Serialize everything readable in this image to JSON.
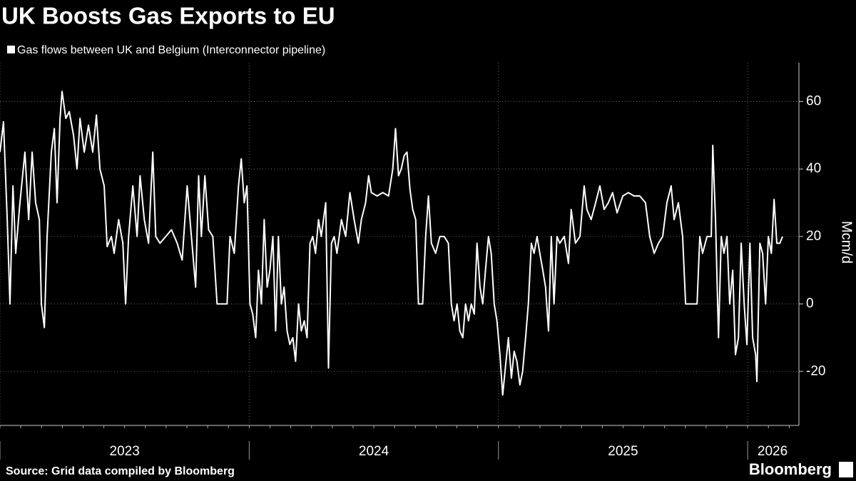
{
  "chart_data": {
    "type": "line",
    "title": "UK Boosts Gas Exports to EU",
    "source": "Source: Grid data compiled by Bloomberg",
    "brand": "Bloomberg",
    "ylabel": "Mcm/d",
    "xlim": [
      2023,
      2026.2
    ],
    "xticks": [
      2023,
      2024,
      2025,
      2026
    ],
    "ylim": [
      -36,
      71.5
    ],
    "yticks": [
      -20,
      0,
      20,
      40,
      60
    ],
    "grid": true,
    "series": [
      {
        "name": "Gas flows between UK and Belgium (Interconnector pipeline)",
        "color": "#ffffff",
        "x": [
          2023.0,
          2023.014,
          2023.029,
          2023.04,
          2023.052,
          2023.063,
          2023.08,
          2023.1,
          2023.115,
          2023.129,
          2023.143,
          2023.158,
          2023.166,
          2023.178,
          2023.189,
          2023.206,
          2023.218,
          2023.229,
          2023.241,
          2023.249,
          2023.264,
          2023.278,
          2023.295,
          2023.309,
          2023.321,
          2023.338,
          2023.355,
          2023.372,
          2023.387,
          2023.401,
          2023.418,
          2023.43,
          2023.447,
          2023.458,
          2023.476,
          2023.493,
          2023.504,
          2023.516,
          2023.533,
          2023.55,
          2023.562,
          2023.579,
          2023.596,
          2023.613,
          2023.625,
          2023.642,
          2023.665,
          2023.688,
          2023.711,
          2023.731,
          2023.751,
          2023.768,
          2023.785,
          2023.797,
          2023.808,
          2023.822,
          2023.837,
          2023.854,
          2023.871,
          2023.894,
          2023.911,
          2023.923,
          2023.94,
          2023.957,
          2023.968,
          2023.98,
          2023.991,
          2024.003,
          2024.014,
          2024.026,
          2024.037,
          2024.049,
          2024.06,
          2024.072,
          2024.083,
          2024.095,
          2024.106,
          2024.117,
          2024.129,
          2024.14,
          2024.152,
          2024.163,
          2024.175,
          2024.186,
          2024.198,
          2024.209,
          2024.221,
          2024.232,
          2024.244,
          2024.255,
          2024.266,
          2024.278,
          2024.289,
          2024.307,
          2024.318,
          2024.33,
          2024.341,
          2024.352,
          2024.37,
          2024.387,
          2024.404,
          2024.421,
          2024.438,
          2024.45,
          2024.467,
          2024.479,
          2024.49,
          2024.513,
          2024.536,
          2024.559,
          2024.576,
          2024.587,
          2024.599,
          2024.61,
          2024.622,
          2024.633,
          2024.645,
          2024.656,
          2024.668,
          2024.679,
          2024.696,
          2024.708,
          2024.719,
          2024.731,
          2024.748,
          2024.765,
          2024.782,
          2024.799,
          2024.811,
          2024.822,
          2024.834,
          2024.845,
          2024.857,
          2024.868,
          2024.88,
          2024.891,
          2024.903,
          2024.914,
          2024.926,
          2024.937,
          2024.948,
          2024.96,
          2024.971,
          2024.983,
          2024.994,
          2025.006,
          2025.017,
          2025.029,
          2025.04,
          2025.052,
          2025.063,
          2025.074,
          2025.086,
          2025.097,
          2025.109,
          2025.12,
          2025.132,
          2025.143,
          2025.155,
          2025.166,
          2025.178,
          2025.189,
          2025.201,
          2025.212,
          2025.223,
          2025.235,
          2025.246,
          2025.264,
          2025.281,
          2025.292,
          2025.309,
          2025.327,
          2025.344,
          2025.355,
          2025.372,
          2025.39,
          2025.407,
          2025.424,
          2025.441,
          2025.458,
          2025.476,
          2025.499,
          2025.521,
          2025.544,
          2025.567,
          2025.59,
          2025.607,
          2025.625,
          2025.642,
          2025.659,
          2025.676,
          2025.693,
          2025.705,
          2025.722,
          2025.739,
          2025.751,
          2025.779,
          2025.797,
          2025.808,
          2025.819,
          2025.837,
          2025.854,
          2025.86,
          2025.871,
          2025.883,
          2025.894,
          2025.905,
          2025.917,
          2025.928,
          2025.94,
          2025.951,
          2025.963,
          2025.974,
          2025.986,
          2025.997,
          2026.009,
          2026.02,
          2026.032,
          2026.037,
          2026.049,
          2026.06,
          2026.072,
          2026.083,
          2026.095,
          2026.106,
          2026.117,
          2026.129,
          2026.14
        ],
        "values": [
          45,
          54,
          25,
          0,
          35,
          15,
          30,
          45,
          25,
          45,
          30,
          25,
          0,
          -7,
          20,
          45,
          52,
          30,
          55,
          63,
          55,
          57,
          50,
          40,
          55,
          45,
          53,
          45,
          56,
          40,
          35,
          17,
          20,
          15,
          25,
          18,
          0,
          20,
          35,
          20,
          38,
          25,
          18,
          45,
          20,
          18,
          20,
          22,
          18,
          13,
          35,
          20,
          5,
          38,
          20,
          38,
          22,
          20,
          0,
          0,
          0,
          20,
          15,
          35,
          43,
          30,
          35,
          0,
          -3,
          -10,
          10,
          0,
          25,
          5,
          10,
          20,
          -8,
          20,
          0,
          5,
          -8,
          -12,
          -10,
          -17,
          0,
          -8,
          -5,
          -10,
          18,
          20,
          15,
          25,
          20,
          30,
          -19,
          18,
          20,
          15,
          25,
          20,
          33,
          25,
          18,
          25,
          30,
          38,
          33,
          32,
          33,
          32,
          40,
          52,
          38,
          40,
          44,
          45,
          34,
          28,
          25,
          0,
          0,
          20,
          32,
          18,
          15,
          20,
          20,
          18,
          0,
          -5,
          0,
          -8,
          -10,
          0,
          -5,
          0,
          -3,
          18,
          5,
          0,
          10,
          20,
          15,
          0,
          -5,
          -15,
          -27,
          -18,
          -10,
          -22,
          -14,
          -17,
          -24,
          -20,
          -10,
          0,
          18,
          15,
          20,
          15,
          10,
          5,
          -8,
          20,
          0,
          20,
          18,
          20,
          12,
          28,
          18,
          20,
          35,
          28,
          25,
          30,
          35,
          28,
          30,
          33,
          27,
          32,
          33,
          32,
          32,
          30,
          20,
          15,
          18,
          20,
          30,
          35,
          25,
          30,
          20,
          0,
          0,
          0,
          20,
          15,
          20,
          20,
          47,
          25,
          -10,
          20,
          15,
          20,
          0,
          10,
          -15,
          -10,
          18,
          0,
          -12,
          18,
          -10,
          -15,
          -23,
          18,
          15,
          0,
          20,
          15,
          31,
          18,
          18,
          20
        ]
      }
    ]
  }
}
